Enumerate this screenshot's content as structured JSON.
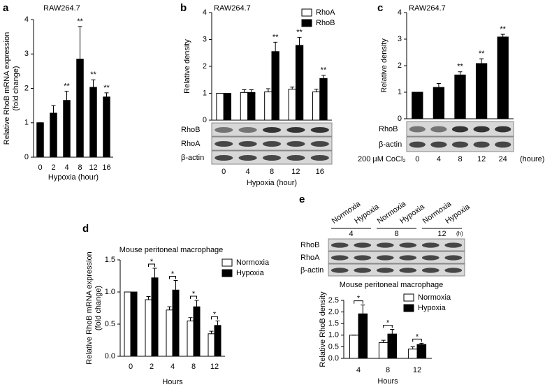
{
  "chart_data": [
    {
      "panel": "a",
      "type": "bar",
      "title": "RAW264.7",
      "ylabel": [
        "Relative RhoB mRNA expression",
        "(fold change)"
      ],
      "xlabel": "Hypoxia (hour)",
      "categories": [
        "0",
        "2",
        "4",
        "8",
        "12",
        "16"
      ],
      "values": [
        1,
        1.28,
        1.65,
        2.85,
        2.03,
        1.75
      ],
      "errors": [
        0,
        0.22,
        0.27,
        0.95,
        0.22,
        0.12
      ],
      "markers": [
        null,
        null,
        "**",
        "**",
        "**",
        "**"
      ],
      "color": "#000000",
      "ylim": [
        0,
        4
      ],
      "yticks": [
        0,
        1,
        2,
        3,
        4
      ]
    },
    {
      "panel": "b",
      "type": "bar",
      "title": "RAW264.7",
      "ylabel": [
        "Relative density"
      ],
      "xlabel": "Hypoxia (hour)",
      "categories": [
        "0",
        "4",
        "8",
        "12",
        "16"
      ],
      "series": [
        {
          "name": "RhoA",
          "color": "#ffffff",
          "values": [
            1,
            1.03,
            1.05,
            1.15,
            1.05
          ],
          "errors": [
            0,
            0.1,
            0.12,
            0.08,
            0.1
          ]
        },
        {
          "name": "RhoB",
          "color": "#000000",
          "values": [
            1,
            1.03,
            2.55,
            2.78,
            1.55
          ],
          "errors": [
            0,
            0.1,
            0.35,
            0.3,
            0.12
          ]
        }
      ],
      "markers": [
        null,
        null,
        "**",
        "**",
        "**"
      ],
      "blot_rows": [
        "RhoB",
        "RhoA",
        "β-actin"
      ],
      "ylim": [
        0,
        4
      ],
      "yticks": [
        0,
        1,
        2,
        3,
        4
      ]
    },
    {
      "panel": "c",
      "type": "bar",
      "title": "RAW264.7",
      "ylabel": [
        "Relative density"
      ],
      "row_label": "200 µM CoCl₂",
      "unit": "(houre)",
      "categories": [
        "0",
        "4",
        "8",
        "12",
        "24"
      ],
      "values": [
        1,
        1.18,
        1.65,
        2.08,
        3.08
      ],
      "errors": [
        0,
        0.15,
        0.12,
        0.18,
        0.1
      ],
      "markers": [
        null,
        null,
        "**",
        "**",
        "**"
      ],
      "color": "#000000",
      "blot_rows": [
        "RhoB",
        "β-actin"
      ],
      "ylim": [
        0,
        4
      ],
      "yticks": [
        0,
        1,
        2,
        3,
        4
      ]
    },
    {
      "panel": "d",
      "type": "bar",
      "title": "Mouse peritoneal macrophage",
      "ylabel": [
        "Relative RhoB mRNA expression",
        "(fold change)"
      ],
      "xlabel": "Hours",
      "categories": [
        "0",
        "2",
        "4",
        "8",
        "12"
      ],
      "series": [
        {
          "name": "Normoxia",
          "color": "#ffffff",
          "values": [
            1,
            0.88,
            0.72,
            0.55,
            0.35
          ],
          "errors": [
            0,
            0.05,
            0.05,
            0.05,
            0.04
          ]
        },
        {
          "name": "Hypoxia",
          "color": "#000000",
          "values": [
            1,
            1.22,
            1.03,
            0.77,
            0.48
          ],
          "errors": [
            0,
            0.15,
            0.15,
            0.1,
            0.07
          ]
        }
      ],
      "markers": [
        null,
        "*",
        "*",
        "*",
        "*"
      ],
      "bracket": true,
      "ylim": [
        0,
        1.5
      ],
      "yticks": [
        {
          "value": 0,
          "label": "0.0"
        },
        {
          "value": 0.5,
          "label": "0.5"
        },
        {
          "value": 1,
          "label": "1.0"
        },
        {
          "value": 1.5,
          "label": "1.5"
        }
      ]
    },
    {
      "panel": "e",
      "type": "bar",
      "title": "Mouse peritoneal macrophage",
      "ylabel": [
        "Relative RhoB density"
      ],
      "xlabel": "Hours",
      "categories": [
        "4",
        "8",
        "12"
      ],
      "series": [
        {
          "name": "Normoxia",
          "color": "#ffffff",
          "values": [
            1,
            0.68,
            0.4
          ],
          "errors": [
            0,
            0.1,
            0.1
          ]
        },
        {
          "name": "Hypoxia",
          "color": "#000000",
          "values": [
            1.92,
            1.05,
            0.6
          ],
          "errors": [
            0.38,
            0.2,
            0.05
          ]
        }
      ],
      "markers": [
        "*",
        "*",
        "*"
      ],
      "bracket": true,
      "blot_columns": [
        "Normoxia",
        "Hypoxia",
        "Normoxia",
        "Hypoxia",
        "Normoxia",
        "Hypoxia"
      ],
      "blot_groups": [
        "4",
        "8",
        "12"
      ],
      "blot_unit": "(h)",
      "blot_rows": [
        "RhoB",
        "RhoA",
        "β-actin"
      ],
      "ylim": [
        0,
        2.5
      ],
      "yticks": [
        {
          "value": 0,
          "label": "0.0"
        },
        {
          "value": 0.5,
          "label": "0.5"
        },
        {
          "value": 1,
          "label": "1.0"
        },
        {
          "value": 1.5,
          "label": "1.5"
        },
        {
          "value": 2,
          "label": "2.0"
        },
        {
          "value": 2.5,
          "label": "2.5"
        }
      ]
    }
  ]
}
